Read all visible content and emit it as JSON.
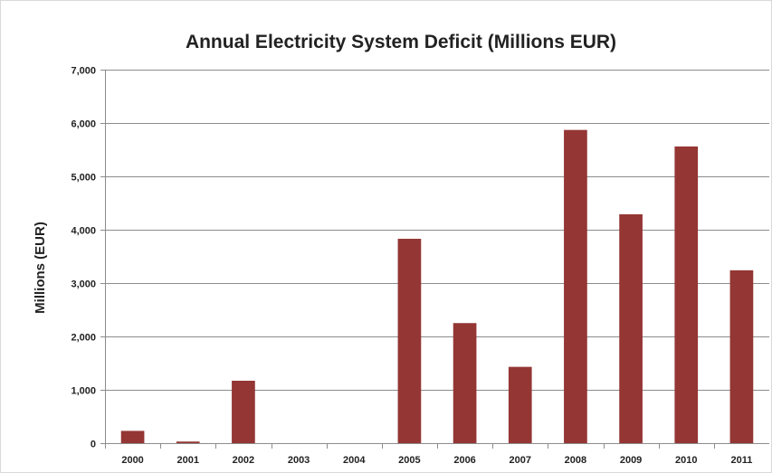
{
  "chart_data": {
    "type": "bar",
    "title": "Annual Electricity System Deficit (Millions EUR)",
    "xlabel": "",
    "ylabel": "Millions (EUR)",
    "categories": [
      "2000",
      "2001",
      "2002",
      "2003",
      "2004",
      "2005",
      "2006",
      "2007",
      "2008",
      "2009",
      "2010",
      "2011"
    ],
    "values": [
      230,
      30,
      1170,
      0,
      0,
      3830,
      2250,
      1430,
      5870,
      4290,
      5560,
      3240
    ],
    "ylim": [
      0,
      7000
    ],
    "yticks": [
      0,
      1000,
      2000,
      3000,
      4000,
      5000,
      6000,
      7000
    ],
    "ytick_labels": [
      "0",
      "1,000",
      "2,000",
      "3,000",
      "4,000",
      "5,000",
      "6,000",
      "7,000"
    ],
    "grid": true,
    "legend": "none",
    "bar_color": "#943634"
  }
}
